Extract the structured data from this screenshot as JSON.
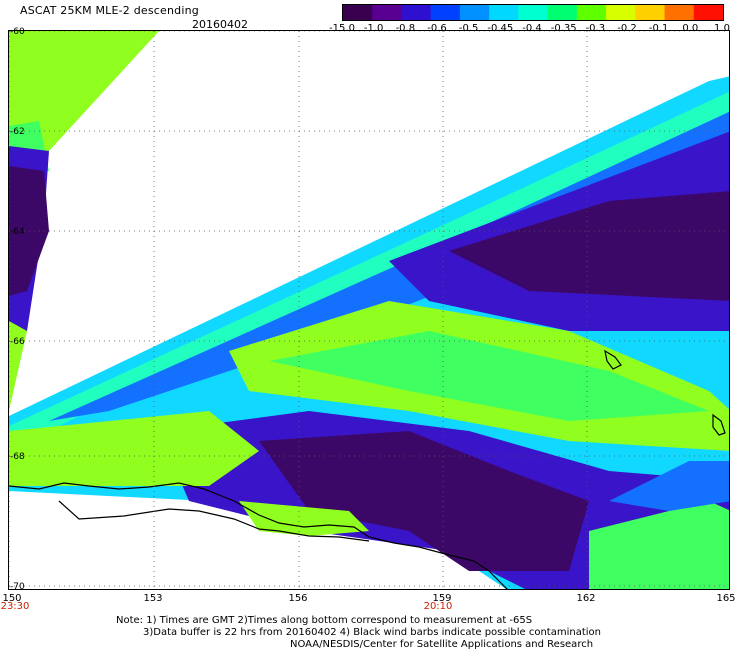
{
  "header": {
    "title": "ASCAT 25KM MLE-2 descending",
    "date": "20160402"
  },
  "colorbar": {
    "labels": [
      "-15.0",
      "-1.0",
      "-0.8",
      "-0.6",
      "-0.5",
      "-0.45",
      "-0.4",
      "-0.35",
      "-0.3",
      "-0.2",
      "-0.1",
      "0.0",
      "1.0"
    ],
    "colors": [
      "#3a0050",
      "#5a0090",
      "#3010d0",
      "#0040ff",
      "#0090ff",
      "#00d8ff",
      "#00ffd0",
      "#00ff70",
      "#60ff00",
      "#d8ff00",
      "#ffd000",
      "#ff7000",
      "#ff1000"
    ]
  },
  "map": {
    "x_ticks": [
      "150",
      "153",
      "156",
      "159",
      "162",
      "165"
    ],
    "y_ticks": [
      "-60",
      "-62",
      "-64",
      "-66",
      "-68",
      "-70"
    ],
    "times": [
      "23:30",
      "20:10"
    ],
    "swath_colors": {
      "very_low": "#3c0868",
      "low": "#3a14c8",
      "mid": "#1470ff",
      "cyan": "#10d8ff",
      "teal": "#20ffc0",
      "green": "#40ff60",
      "lime": "#90ff20"
    }
  },
  "footer": {
    "note1": "Note: 1) Times are GMT 2)Times along bottom correspond to measurement at -65S",
    "note2": "3)Data buffer is 22 hrs from 20160402 4) Black wind barbs indicate possible contamination",
    "note3": "NOAA/NESDIS/Center for Satellite Applications and Research"
  }
}
